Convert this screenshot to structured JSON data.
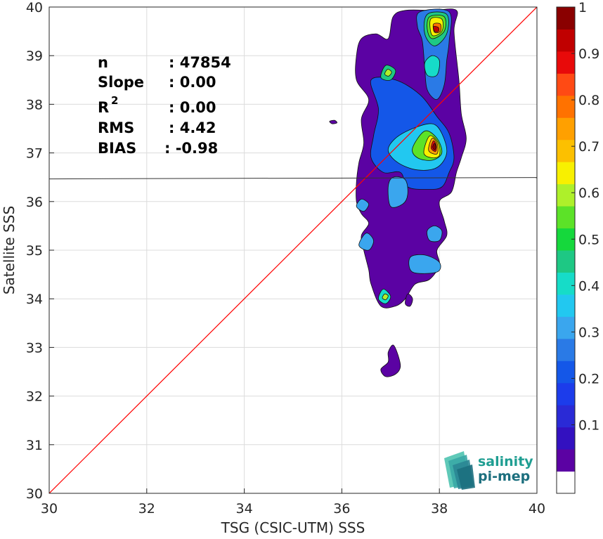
{
  "chart_data": {
    "type": "heatmap",
    "title": "",
    "xlabel": "TSG (CSIC-UTM) SSS",
    "ylabel": "Satellite SSS",
    "xlim": [
      30,
      40
    ],
    "ylim": [
      30,
      40
    ],
    "x_ticks": [
      30,
      32,
      34,
      36,
      38,
      40
    ],
    "y_ticks": [
      30,
      31,
      32,
      33,
      34,
      35,
      36,
      37,
      38,
      39,
      40
    ],
    "grid": true,
    "reference_line": {
      "color": "#ff0000",
      "from": [
        30,
        30
      ],
      "to": [
        40,
        40
      ]
    },
    "horizontal_line": {
      "y": 36.48,
      "color": "#333333"
    },
    "stats": [
      {
        "label": "n",
        "value": ": 47854"
      },
      {
        "label": "Slope",
        "value": ": 0.00"
      },
      {
        "label": "R",
        "sup": "2",
        "value": ": 0.00"
      },
      {
        "label": "RMS",
        "value": ": 4.42"
      },
      {
        "label": "BIAS",
        "value": ": -0.98"
      }
    ],
    "colorbar": {
      "min": 0,
      "max": 1,
      "ticks": [
        "0.1",
        "0.2",
        "0.3",
        "0.4",
        "0.5",
        "0.6",
        "0.7",
        "0.8",
        "0.9",
        "1"
      ],
      "colors": [
        "#ffffff",
        "#5b02a3",
        "#3311c0",
        "#2a2ad6",
        "#1c3ceb",
        "#1457e8",
        "#2a7ae6",
        "#3aa6ee",
        "#22c8f0",
        "#16dcc8",
        "#1ec884",
        "#15d83c",
        "#5ce228",
        "#aef02a",
        "#f8f000",
        "#fcc000",
        "#ffa000",
        "#ff7200",
        "#ff4a14",
        "#e80a0a",
        "#c00000",
        "#8a0000"
      ]
    },
    "density_blobs": [
      {
        "level": 1,
        "pts": [
          [
            37.85,
            39.93
          ],
          [
            38.35,
            39.93
          ],
          [
            38.3,
            39.5
          ],
          [
            38.4,
            38.5
          ],
          [
            38.45,
            37.8
          ],
          [
            38.55,
            37.3
          ],
          [
            38.45,
            36.9
          ],
          [
            38.35,
            36.6
          ],
          [
            38.25,
            36.2
          ],
          [
            38.0,
            36.0
          ],
          [
            38.1,
            35.6
          ],
          [
            38.15,
            35.3
          ],
          [
            37.95,
            35.0
          ],
          [
            38.0,
            34.7
          ],
          [
            37.8,
            34.4
          ],
          [
            37.5,
            34.3
          ],
          [
            37.3,
            34.0
          ],
          [
            37.1,
            33.85
          ],
          [
            36.8,
            33.85
          ],
          [
            36.6,
            34.3
          ],
          [
            36.55,
            34.6
          ],
          [
            36.45,
            35.0
          ],
          [
            36.4,
            35.3
          ],
          [
            36.55,
            35.55
          ],
          [
            36.4,
            35.75
          ],
          [
            36.3,
            36.0
          ],
          [
            36.3,
            36.4
          ],
          [
            36.35,
            36.8
          ],
          [
            36.45,
            37.2
          ],
          [
            36.4,
            37.7
          ],
          [
            36.55,
            38.1
          ],
          [
            36.3,
            38.5
          ],
          [
            36.3,
            39.0
          ],
          [
            36.4,
            39.35
          ],
          [
            36.7,
            39.45
          ],
          [
            36.95,
            39.35
          ],
          [
            37.05,
            39.8
          ],
          [
            37.3,
            39.93
          ]
        ]
      },
      {
        "level": 1,
        "pts": [
          [
            35.75,
            37.65
          ],
          [
            35.85,
            37.67
          ],
          [
            35.9,
            37.62
          ],
          [
            35.8,
            37.6
          ]
        ]
      },
      {
        "level": 1,
        "pts": [
          [
            37.35,
            34.1
          ],
          [
            37.45,
            34.0
          ],
          [
            37.4,
            33.85
          ],
          [
            37.3,
            33.9
          ]
        ]
      },
      {
        "level": 1,
        "pts": [
          [
            37.05,
            33.05
          ],
          [
            37.15,
            32.85
          ],
          [
            37.2,
            32.6
          ],
          [
            37.1,
            32.45
          ],
          [
            36.9,
            32.4
          ],
          [
            36.8,
            32.55
          ],
          [
            36.95,
            32.7
          ],
          [
            36.95,
            32.9
          ]
        ]
      },
      {
        "level": 5,
        "pts": [
          [
            36.6,
            38.5
          ],
          [
            37.1,
            38.5
          ],
          [
            37.6,
            38.2
          ],
          [
            37.95,
            37.75
          ],
          [
            38.2,
            37.4
          ],
          [
            38.3,
            36.9
          ],
          [
            38.2,
            36.6
          ],
          [
            38.05,
            36.3
          ],
          [
            37.75,
            36.25
          ],
          [
            37.35,
            36.3
          ],
          [
            37.2,
            36.6
          ],
          [
            36.85,
            36.6
          ],
          [
            36.6,
            36.9
          ],
          [
            36.65,
            37.35
          ],
          [
            36.75,
            37.9
          ]
        ]
      },
      {
        "level": 6,
        "pts": [
          [
            37.6,
            39.9
          ],
          [
            38.2,
            39.9
          ],
          [
            38.2,
            39.3
          ],
          [
            38.15,
            38.9
          ],
          [
            38.1,
            38.4
          ],
          [
            37.95,
            38.1
          ],
          [
            37.75,
            38.3
          ],
          [
            37.7,
            38.75
          ],
          [
            37.65,
            39.3
          ],
          [
            37.55,
            39.6
          ]
        ]
      },
      {
        "level": 7,
        "pts": [
          [
            37.0,
            35.9
          ],
          [
            37.25,
            35.95
          ],
          [
            37.35,
            36.15
          ],
          [
            37.3,
            36.45
          ],
          [
            37.05,
            36.5
          ],
          [
            36.95,
            36.3
          ]
        ]
      },
      {
        "level": 7,
        "pts": [
          [
            37.45,
            34.55
          ],
          [
            37.95,
            34.55
          ],
          [
            38.0,
            34.75
          ],
          [
            37.7,
            34.9
          ],
          [
            37.4,
            34.85
          ]
        ]
      },
      {
        "level": 7,
        "pts": [
          [
            37.8,
            35.2
          ],
          [
            38.0,
            35.2
          ],
          [
            38.05,
            35.4
          ],
          [
            37.9,
            35.5
          ],
          [
            37.75,
            35.4
          ]
        ]
      },
      {
        "level": 7,
        "pts": [
          [
            36.35,
            35.1
          ],
          [
            36.55,
            35.0
          ],
          [
            36.65,
            35.2
          ],
          [
            36.5,
            35.35
          ]
        ]
      },
      {
        "level": 7,
        "pts": [
          [
            36.3,
            35.9
          ],
          [
            36.45,
            35.8
          ],
          [
            36.55,
            35.95
          ],
          [
            36.4,
            36.05
          ]
        ]
      },
      {
        "level": 8,
        "pts": [
          [
            37.1,
            37.3
          ],
          [
            37.45,
            37.5
          ],
          [
            37.85,
            37.6
          ],
          [
            38.05,
            37.4
          ],
          [
            38.15,
            37.0
          ],
          [
            37.95,
            36.7
          ],
          [
            37.55,
            36.65
          ],
          [
            37.15,
            36.8
          ],
          [
            36.95,
            37.05
          ]
        ]
      },
      {
        "level": 9,
        "pts": [
          [
            37.75,
            38.6
          ],
          [
            37.95,
            38.6
          ],
          [
            38.0,
            38.9
          ],
          [
            37.85,
            39.0
          ],
          [
            37.7,
            38.85
          ]
        ]
      },
      {
        "level": 9,
        "pts": [
          [
            36.75,
            34.0
          ],
          [
            36.9,
            33.9
          ],
          [
            37.0,
            34.05
          ],
          [
            36.85,
            34.2
          ]
        ]
      },
      {
        "level": 10,
        "pts": [
          [
            37.75,
            39.85
          ],
          [
            38.15,
            39.85
          ],
          [
            38.15,
            39.45
          ],
          [
            37.9,
            39.2
          ],
          [
            37.7,
            39.45
          ]
        ]
      },
      {
        "level": 10,
        "pts": [
          [
            36.8,
            38.55
          ],
          [
            37.0,
            38.5
          ],
          [
            37.1,
            38.7
          ],
          [
            36.9,
            38.8
          ]
        ]
      },
      {
        "level": 12,
        "pts": [
          [
            37.45,
            37.1
          ],
          [
            37.7,
            37.45
          ],
          [
            37.95,
            37.3
          ],
          [
            38.05,
            37.0
          ],
          [
            37.85,
            36.85
          ],
          [
            37.55,
            36.9
          ]
        ]
      },
      {
        "level": 12,
        "pts": [
          [
            37.8,
            39.8
          ],
          [
            38.1,
            39.8
          ],
          [
            38.1,
            39.5
          ],
          [
            37.85,
            39.35
          ],
          [
            37.75,
            39.55
          ]
        ]
      },
      {
        "level": 13,
        "pts": [
          [
            36.88,
            38.62
          ],
          [
            36.96,
            38.58
          ],
          [
            37.02,
            38.66
          ],
          [
            36.94,
            38.72
          ]
        ]
      },
      {
        "level": 13,
        "pts": [
          [
            36.83,
            34.02
          ],
          [
            36.9,
            33.98
          ],
          [
            36.95,
            34.06
          ],
          [
            36.88,
            34.1
          ]
        ]
      },
      {
        "level": 14,
        "pts": [
          [
            37.68,
            37.0
          ],
          [
            37.8,
            37.35
          ],
          [
            37.98,
            37.2
          ],
          [
            38.0,
            36.95
          ],
          [
            37.85,
            36.9
          ]
        ]
      },
      {
        "level": 14,
        "pts": [
          [
            37.82,
            39.75
          ],
          [
            38.05,
            39.75
          ],
          [
            38.05,
            39.5
          ],
          [
            37.85,
            39.42
          ]
        ]
      },
      {
        "level": 16,
        "pts": [
          [
            37.78,
            37.05
          ],
          [
            37.85,
            37.3
          ],
          [
            37.96,
            37.18
          ],
          [
            37.95,
            36.98
          ]
        ]
      },
      {
        "level": 17,
        "pts": [
          [
            37.88,
            39.65
          ],
          [
            38.02,
            39.65
          ],
          [
            38.02,
            39.5
          ],
          [
            37.9,
            39.48
          ]
        ]
      },
      {
        "level": 19,
        "pts": [
          [
            37.83,
            37.1
          ],
          [
            37.88,
            37.25
          ],
          [
            37.94,
            37.15
          ],
          [
            37.92,
            37.03
          ]
        ]
      },
      {
        "level": 20,
        "pts": [
          [
            37.88,
            39.6
          ],
          [
            37.98,
            39.58
          ],
          [
            37.98,
            39.5
          ],
          [
            37.9,
            39.5
          ]
        ]
      },
      {
        "level": 21,
        "pts": [
          [
            37.86,
            37.12
          ],
          [
            37.9,
            37.2
          ],
          [
            37.93,
            37.12
          ],
          [
            37.9,
            37.06
          ]
        ]
      }
    ]
  },
  "logo": {
    "line1": "salinity",
    "line2": "pi-mep",
    "colors": [
      "#5fc9b8",
      "#3aa9a6",
      "#2a8694",
      "#1c6f7e"
    ]
  }
}
